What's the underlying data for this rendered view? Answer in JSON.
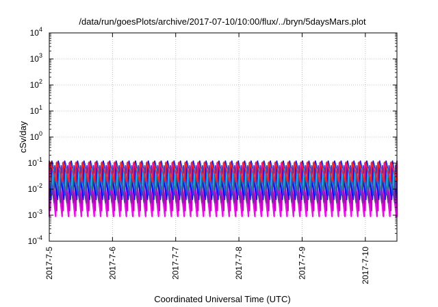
{
  "chart_data": {
    "type": "line",
    "title": "/data/run/goesPlots/archive/2017-07-10/10:00/flux/../bryn/5daysMars.plot",
    "xlabel": "Coordinated Universal Time (UTC)",
    "ylabel": "cSv/day",
    "x_tick_labels": [
      "2017-7-5",
      "2017-7-6",
      "2017-7-7",
      "2017-7-8",
      "2017-7-9",
      "2017-7-10"
    ],
    "xlim": [
      "2017-07-05T00:00",
      "2017-07-10T12:00"
    ],
    "y_scale": "log",
    "ylim": [
      0.0001,
      10000
    ],
    "y_tick_labels": [
      {
        "base": "10",
        "exp": "4"
      },
      {
        "base": "10",
        "exp": "3"
      },
      {
        "base": "10",
        "exp": "2"
      },
      {
        "base": "10",
        "exp": "1"
      },
      {
        "base": "10",
        "exp": "0"
      },
      {
        "base": "10",
        "exp": "-1"
      },
      {
        "base": "10",
        "exp": "-2"
      },
      {
        "base": "10",
        "exp": "-3"
      },
      {
        "base": "10",
        "exp": "-4"
      }
    ],
    "grid": true,
    "period_hours": 2.44,
    "series": [
      {
        "color": "#ff00ff",
        "peak": 0.1,
        "trough": 0.0009,
        "phase_hours": 0.0
      },
      {
        "color": "#c000c0",
        "peak": 0.09,
        "trough": 0.0015,
        "phase_hours": 0.35
      },
      {
        "color": "#0000ff",
        "peak": 0.12,
        "trough": 0.004,
        "phase_hours": 0.7
      },
      {
        "color": "#0050ff",
        "peak": 0.1,
        "trough": 0.006,
        "phase_hours": 0.95
      },
      {
        "color": "#00c8ff",
        "peak": 0.06,
        "trough": 0.008,
        "phase_hours": 1.2
      },
      {
        "color": "#00a090",
        "peak": 0.03,
        "trough": 0.01,
        "phase_hours": 1.5
      },
      {
        "color": "#7030a0",
        "peak": 0.08,
        "trough": 0.003,
        "phase_hours": 1.8
      },
      {
        "color": "#ff2020",
        "peak": 0.11,
        "trough": 0.02,
        "phase_hours": 0.15
      }
    ]
  }
}
